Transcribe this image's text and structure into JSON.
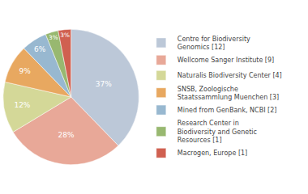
{
  "chart_data": {
    "type": "pie",
    "categories": [
      "Centre for Biodiversity\nGenomics [12]",
      "Wellcome Sanger Institute [9]",
      "Naturalis Biodiversity Center [4]",
      "SNSB, Zoologische\nStaatssammlung Muenchen [3]",
      "Mined from GenBank, NCBI [2]",
      "Research Center in\nBiodiversity and Genetic\nResources [1]",
      "Macrogen, Europe [1]"
    ],
    "values": [
      37,
      28,
      12,
      9,
      6,
      3,
      3
    ],
    "value_labels": [
      "37%",
      "28%",
      "12%",
      "9%",
      "6%",
      "3%",
      "3%"
    ],
    "colors": [
      "#bcc8d8",
      "#e8a898",
      "#d4d898",
      "#e8a860",
      "#98b8d0",
      "#98b870",
      "#d06050"
    ],
    "data_labels": true,
    "legend": "right"
  }
}
